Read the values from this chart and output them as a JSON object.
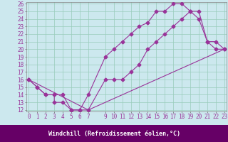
{
  "xlabel": "Windchill (Refroidissement éolien,°C)",
  "bg_color": "#cce8ee",
  "line_color": "#993399",
  "grid_color": "#99ccbb",
  "xlabel_bg": "#660066",
  "line1_x": [
    0,
    1,
    2,
    3,
    4,
    5,
    6,
    7,
    9,
    10,
    11,
    12,
    13,
    14,
    15,
    16,
    17,
    18,
    19,
    20,
    21,
    22,
    23
  ],
  "line1_y": [
    16,
    15,
    14,
    14,
    14,
    12,
    12,
    14,
    19,
    20,
    21,
    22,
    23,
    23.5,
    25,
    25,
    26,
    26,
    25,
    24,
    21,
    21,
    20
  ],
  "line2_x": [
    0,
    1,
    2,
    3,
    3,
    4,
    5,
    6,
    7,
    9,
    10,
    11,
    12,
    13,
    14,
    15,
    16,
    17,
    18,
    19,
    20,
    21,
    22,
    23
  ],
  "line2_y": [
    16,
    15,
    14,
    14,
    13,
    13,
    12,
    12,
    12,
    16,
    16,
    16,
    17,
    18,
    20,
    21,
    22,
    23,
    24,
    25,
    25,
    21,
    20,
    20
  ],
  "line3_x": [
    0,
    7,
    23
  ],
  "line3_y": [
    16,
    12,
    20
  ],
  "xlim": [
    0,
    23
  ],
  "ylim": [
    12,
    26
  ],
  "xticks": [
    0,
    1,
    2,
    3,
    4,
    5,
    6,
    7,
    9,
    10,
    11,
    12,
    13,
    14,
    15,
    16,
    17,
    18,
    19,
    20,
    21,
    22,
    23
  ],
  "yticks": [
    12,
    13,
    14,
    15,
    16,
    17,
    18,
    19,
    20,
    21,
    22,
    23,
    24,
    25,
    26
  ],
  "tick_fontsize": 5.5,
  "xlabel_fontsize": 6.0,
  "marker": "D",
  "markersize": 2.5,
  "linewidth": 0.8
}
